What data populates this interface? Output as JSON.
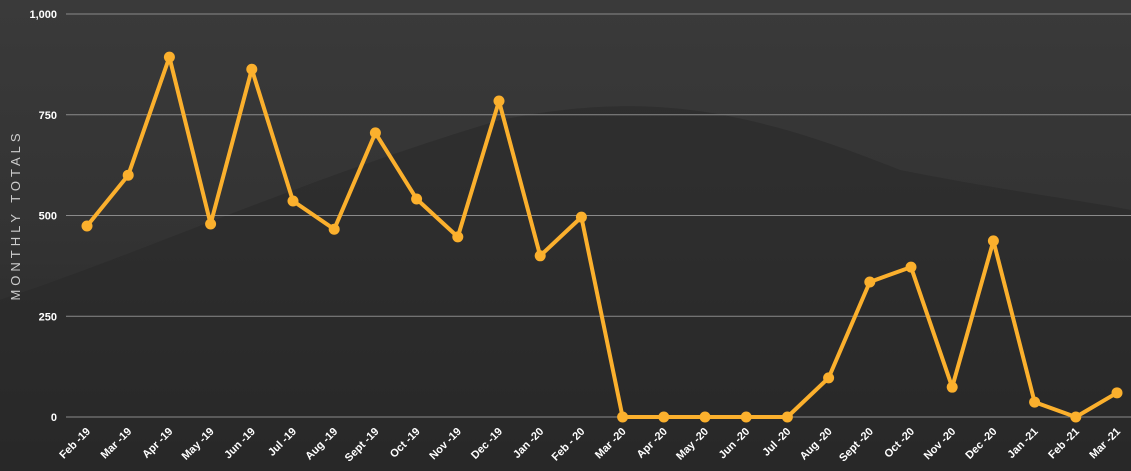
{
  "chart_data": {
    "type": "line",
    "y_label": "MONTHLY TOTALS",
    "categories": [
      "Feb -19",
      "Mar -19",
      "Apr -19",
      "May -19",
      "Jun -19",
      "Jul -19",
      "Aug -19",
      "Sept -19",
      "Oct -19",
      "Nov -19",
      "Dec -19",
      "Jan -20",
      "Feb - 20",
      "Mar -20",
      "Apr -20",
      "May -20",
      "Jun -20",
      "Jul -20",
      "Aug -20",
      "Sept -20",
      "Oct -20",
      "Nov -20",
      "Dec -20",
      "Jan -21",
      "Feb -21",
      "Mar -21"
    ],
    "series": [
      {
        "color": "#fbb02d",
        "values": [
          474,
          600,
          893,
          479,
          863,
          536,
          466,
          705,
          541,
          447,
          784,
          400,
          496,
          0,
          0,
          0,
          0,
          0,
          97,
          335,
          372,
          74,
          437,
          37,
          0,
          60
        ]
      }
    ],
    "ylim": [
      0,
      1000
    ],
    "yticks": [
      0,
      250,
      500,
      750,
      {
        "value": 1000,
        "label": "1,000"
      }
    ],
    "grid": true
  }
}
